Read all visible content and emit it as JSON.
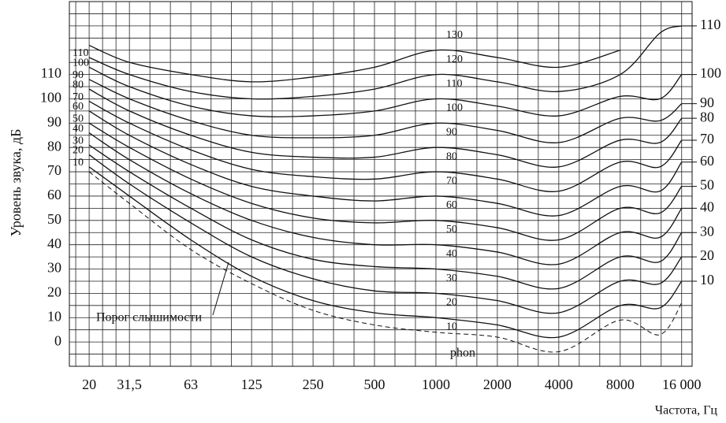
{
  "chart_data": {
    "type": "line",
    "xlabel": "Частота, Гц",
    "ylabel": "Уровень звука, дБ",
    "x_scale": "log",
    "grid": true,
    "x": [
      20,
      31.5,
      63,
      125,
      250,
      500,
      1000,
      2000,
      4000,
      8000,
      12500,
      16000
    ],
    "xlim": [
      16,
      18000
    ],
    "xticks": [
      20,
      {
        "value": 31.5,
        "label": "31,5"
      },
      63,
      125,
      250,
      500,
      1000,
      2000,
      4000,
      8000,
      {
        "value": 16000,
        "label": "16 000"
      }
    ],
    "ylim": [
      -10,
      140
    ],
    "yticks": [
      0,
      10,
      20,
      30,
      40,
      50,
      60,
      70,
      80,
      90,
      100,
      110
    ],
    "unit_label": "phon",
    "left_labels": [
      10,
      20,
      30,
      40,
      50,
      60,
      70,
      80,
      90,
      100,
      110
    ],
    "center_labels": [
      10,
      20,
      30,
      40,
      50,
      60,
      70,
      80,
      90,
      100,
      110,
      120,
      130
    ],
    "right_labels": [
      10,
      20,
      30,
      40,
      50,
      60,
      70,
      80,
      90,
      100,
      110
    ],
    "series": [
      {
        "name": "Порог слышимости",
        "color": "#111111",
        "dashed": true,
        "values": [
          70,
          57,
          38,
          24,
          13,
          7,
          4,
          2,
          -4,
          9,
          3,
          16
        ]
      },
      {
        "color": "#111111",
        "values": [
          72,
          60,
          42,
          27,
          17,
          12,
          10,
          7,
          2,
          15,
          14,
          25
        ]
      },
      {
        "color": "#111111",
        "values": [
          77,
          65,
          49,
          35,
          26,
          21,
          20,
          17,
          12,
          25,
          24,
          35
        ]
      },
      {
        "color": "#111111",
        "values": [
          81,
          70,
          55,
          42,
          34,
          31,
          30,
          27,
          22,
          35,
          33,
          45
        ]
      },
      {
        "color": "#111111",
        "values": [
          86,
          75,
          61,
          50,
          43,
          40,
          40,
          37,
          32,
          45,
          43,
          55
        ]
      },
      {
        "color": "#111111",
        "values": [
          90,
          80,
          67,
          57,
          51,
          49,
          50,
          47,
          42,
          55,
          53,
          64
        ]
      },
      {
        "color": "#111111",
        "values": [
          95,
          85,
          73,
          64,
          60,
          58,
          60,
          57,
          52,
          64,
          62,
          74
        ]
      },
      {
        "color": "#111111",
        "values": [
          99,
          90,
          79,
          71,
          68,
          67,
          70,
          67,
          62,
          74,
          72,
          83
        ]
      },
      {
        "color": "#111111",
        "values": [
          104,
          95,
          85,
          78,
          76,
          76,
          80,
          77,
          72,
          83,
          82,
          92
        ]
      },
      {
        "color": "#111111",
        "values": [
          108,
          100,
          91,
          85,
          84,
          85,
          90,
          87,
          82,
          92,
          91,
          98
        ]
      },
      {
        "color": "#111111",
        "values": [
          113,
          105,
          97,
          93,
          93,
          95,
          100,
          97,
          93,
          101,
          100,
          110
        ]
      },
      {
        "color": "#111111",
        "values": [
          117,
          110,
          103,
          100,
          101,
          104,
          110,
          107,
          103,
          110,
          127,
          130
        ]
      },
      {
        "color": "#111111",
        "values": [
          122,
          115,
          110,
          107,
          109,
          113,
          120,
          117,
          113,
          120,
          null,
          null
        ]
      }
    ]
  }
}
